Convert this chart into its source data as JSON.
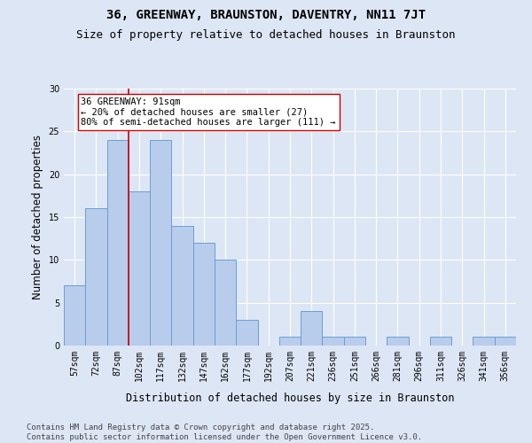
{
  "title": "36, GREENWAY, BRAUNSTON, DAVENTRY, NN11 7JT",
  "subtitle": "Size of property relative to detached houses in Braunston",
  "xlabel": "Distribution of detached houses by size in Braunston",
  "ylabel": "Number of detached properties",
  "categories": [
    "57sqm",
    "72sqm",
    "87sqm",
    "102sqm",
    "117sqm",
    "132sqm",
    "147sqm",
    "162sqm",
    "177sqm",
    "192sqm",
    "207sqm",
    "221sqm",
    "236sqm",
    "251sqm",
    "266sqm",
    "281sqm",
    "296sqm",
    "311sqm",
    "326sqm",
    "341sqm",
    "356sqm"
  ],
  "values": [
    7,
    16,
    24,
    18,
    24,
    14,
    12,
    10,
    3,
    0,
    1,
    4,
    1,
    1,
    0,
    1,
    0,
    1,
    0,
    1,
    1
  ],
  "bar_color": "#b8ccec",
  "bar_edge_color": "#6a9fd4",
  "background_color": "#dde6f5",
  "grid_color": "#ffffff",
  "vline_x_index": 2,
  "vline_color": "#cc0000",
  "annotation_text": "36 GREENWAY: 91sqm\n← 20% of detached houses are smaller (27)\n80% of semi-detached houses are larger (111) →",
  "annotation_box_facecolor": "#ffffff",
  "annotation_box_edgecolor": "#cc0000",
  "ylim": [
    0,
    30
  ],
  "yticks": [
    0,
    5,
    10,
    15,
    20,
    25,
    30
  ],
  "footer_text": "Contains HM Land Registry data © Crown copyright and database right 2025.\nContains public sector information licensed under the Open Government Licence v3.0.",
  "title_fontsize": 10,
  "subtitle_fontsize": 9,
  "axis_label_fontsize": 8.5,
  "tick_fontsize": 7,
  "annotation_fontsize": 7.5,
  "footer_fontsize": 6.5
}
